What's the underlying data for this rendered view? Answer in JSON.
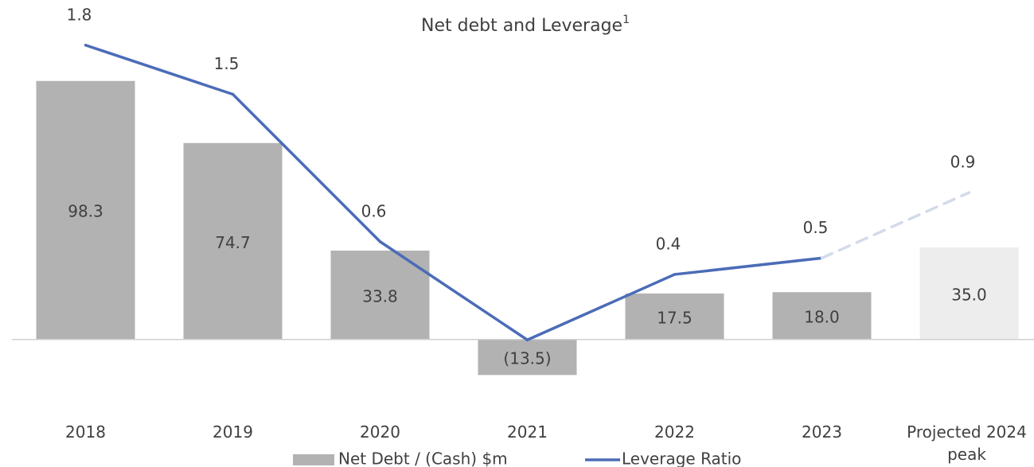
{
  "chart_data": {
    "type": "bar_line",
    "title": "Net debt and Leverage",
    "title_note": "1",
    "categories": [
      "2018",
      "2019",
      "2020",
      "2021",
      "2022",
      "2023",
      "Projected 2024 peak"
    ],
    "ylim": [
      -40,
      120
    ],
    "y2lim": [
      -0.64,
      1.93
    ],
    "series": [
      {
        "name": "Net Debt / (Cash) $m",
        "type": "bar",
        "color": "#b2b2b2",
        "colors": [
          "#b2b2b2",
          "#b2b2b2",
          "#b2b2b2",
          "#b2b2b2",
          "#b2b2b2",
          "#b2b2b2",
          "#ededed"
        ],
        "values": [
          98.3,
          74.7,
          33.8,
          -13.5,
          17.5,
          18.0,
          35.0
        ],
        "value_labels": [
          "98.3",
          "74.7",
          "33.8",
          "(13.5)",
          "17.5",
          "18.0",
          "35.0"
        ]
      },
      {
        "name": "Leverage Ratio",
        "type": "line",
        "axis": "y2",
        "color": "#4b6cb7",
        "projected_color": "#d3dbe9",
        "dashed": [
          false,
          false,
          false,
          false,
          false,
          false,
          true
        ],
        "values": [
          1.8,
          1.5,
          0.6,
          0.0,
          0.4,
          0.5,
          0.9
        ],
        "value_labels": [
          "1.8",
          "1.5",
          "0.6",
          null,
          "0.4",
          "0.5",
          "0.9"
        ]
      }
    ],
    "legend": "bottom"
  }
}
